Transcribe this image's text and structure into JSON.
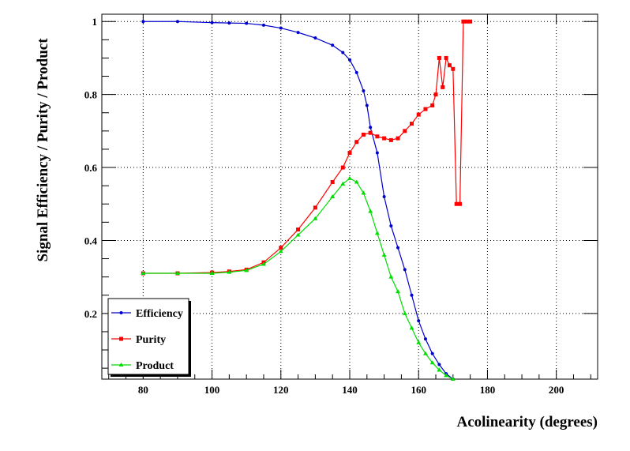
{
  "chart_data": {
    "type": "line",
    "title": "",
    "xlabel": "Acolinearity (degrees)",
    "ylabel": "Signal Efficiency / Purity / Product",
    "xlim": [
      68,
      212
    ],
    "ylim": [
      0.02,
      1.02
    ],
    "x_ticks": [
      80,
      100,
      120,
      140,
      160,
      180,
      200
    ],
    "y_ticks": [
      0.2,
      0.4,
      0.6,
      0.8,
      1
    ],
    "x_tick_labels": [
      "80",
      "100",
      "120",
      "140",
      "160",
      "180",
      "200"
    ],
    "y_tick_labels": [
      "0.2",
      "0.4",
      "0.6",
      "0.8",
      "1"
    ],
    "grid": true,
    "legend_position": "bottom-left",
    "series": [
      {
        "name": "Efficiency",
        "color": "#0000cc",
        "marker": "circle",
        "points": [
          [
            80,
            1.0
          ],
          [
            90,
            1.0
          ],
          [
            100,
            0.997
          ],
          [
            105,
            0.996
          ],
          [
            110,
            0.995
          ],
          [
            115,
            0.99
          ],
          [
            120,
            0.982
          ],
          [
            125,
            0.97
          ],
          [
            130,
            0.955
          ],
          [
            135,
            0.935
          ],
          [
            138,
            0.915
          ],
          [
            140,
            0.895
          ],
          [
            142,
            0.86
          ],
          [
            144,
            0.81
          ],
          [
            145,
            0.77
          ],
          [
            146,
            0.71
          ],
          [
            148,
            0.64
          ],
          [
            150,
            0.52
          ],
          [
            152,
            0.44
          ],
          [
            154,
            0.38
          ],
          [
            156,
            0.32
          ],
          [
            158,
            0.25
          ],
          [
            160,
            0.18
          ],
          [
            162,
            0.13
          ],
          [
            164,
            0.09
          ],
          [
            166,
            0.06
          ],
          [
            168,
            0.035
          ],
          [
            170,
            0.02
          ]
        ]
      },
      {
        "name": "Purity",
        "color": "#ff0000",
        "marker": "square",
        "points": [
          [
            80,
            0.31
          ],
          [
            90,
            0.31
          ],
          [
            100,
            0.312
          ],
          [
            105,
            0.315
          ],
          [
            110,
            0.32
          ],
          [
            115,
            0.34
          ],
          [
            120,
            0.38
          ],
          [
            125,
            0.43
          ],
          [
            130,
            0.49
          ],
          [
            135,
            0.56
          ],
          [
            138,
            0.6
          ],
          [
            140,
            0.64
          ],
          [
            142,
            0.67
          ],
          [
            144,
            0.69
          ],
          [
            146,
            0.695
          ],
          [
            148,
            0.685
          ],
          [
            150,
            0.68
          ],
          [
            152,
            0.675
          ],
          [
            154,
            0.68
          ],
          [
            156,
            0.7
          ],
          [
            158,
            0.72
          ],
          [
            160,
            0.745
          ],
          [
            162,
            0.76
          ],
          [
            164,
            0.77
          ],
          [
            165,
            0.8
          ],
          [
            166,
            0.9
          ],
          [
            167,
            0.82
          ],
          [
            168,
            0.9
          ],
          [
            169,
            0.88
          ],
          [
            170,
            0.87
          ],
          [
            171,
            0.5
          ],
          [
            172,
            0.5
          ],
          [
            173,
            1.0
          ],
          [
            174,
            1.0
          ],
          [
            175,
            1.0
          ]
        ]
      },
      {
        "name": "Product",
        "color": "#00dd00",
        "marker": "triangle",
        "points": [
          [
            80,
            0.31
          ],
          [
            90,
            0.31
          ],
          [
            100,
            0.31
          ],
          [
            105,
            0.313
          ],
          [
            110,
            0.318
          ],
          [
            115,
            0.335
          ],
          [
            120,
            0.37
          ],
          [
            125,
            0.415
          ],
          [
            130,
            0.46
          ],
          [
            135,
            0.52
          ],
          [
            138,
            0.555
          ],
          [
            140,
            0.57
          ],
          [
            142,
            0.56
          ],
          [
            144,
            0.53
          ],
          [
            146,
            0.48
          ],
          [
            148,
            0.42
          ],
          [
            150,
            0.36
          ],
          [
            152,
            0.3
          ],
          [
            154,
            0.26
          ],
          [
            156,
            0.2
          ],
          [
            158,
            0.16
          ],
          [
            160,
            0.12
          ],
          [
            162,
            0.09
          ],
          [
            164,
            0.065
          ],
          [
            166,
            0.045
          ],
          [
            168,
            0.03
          ],
          [
            170,
            0.02
          ]
        ]
      }
    ]
  }
}
